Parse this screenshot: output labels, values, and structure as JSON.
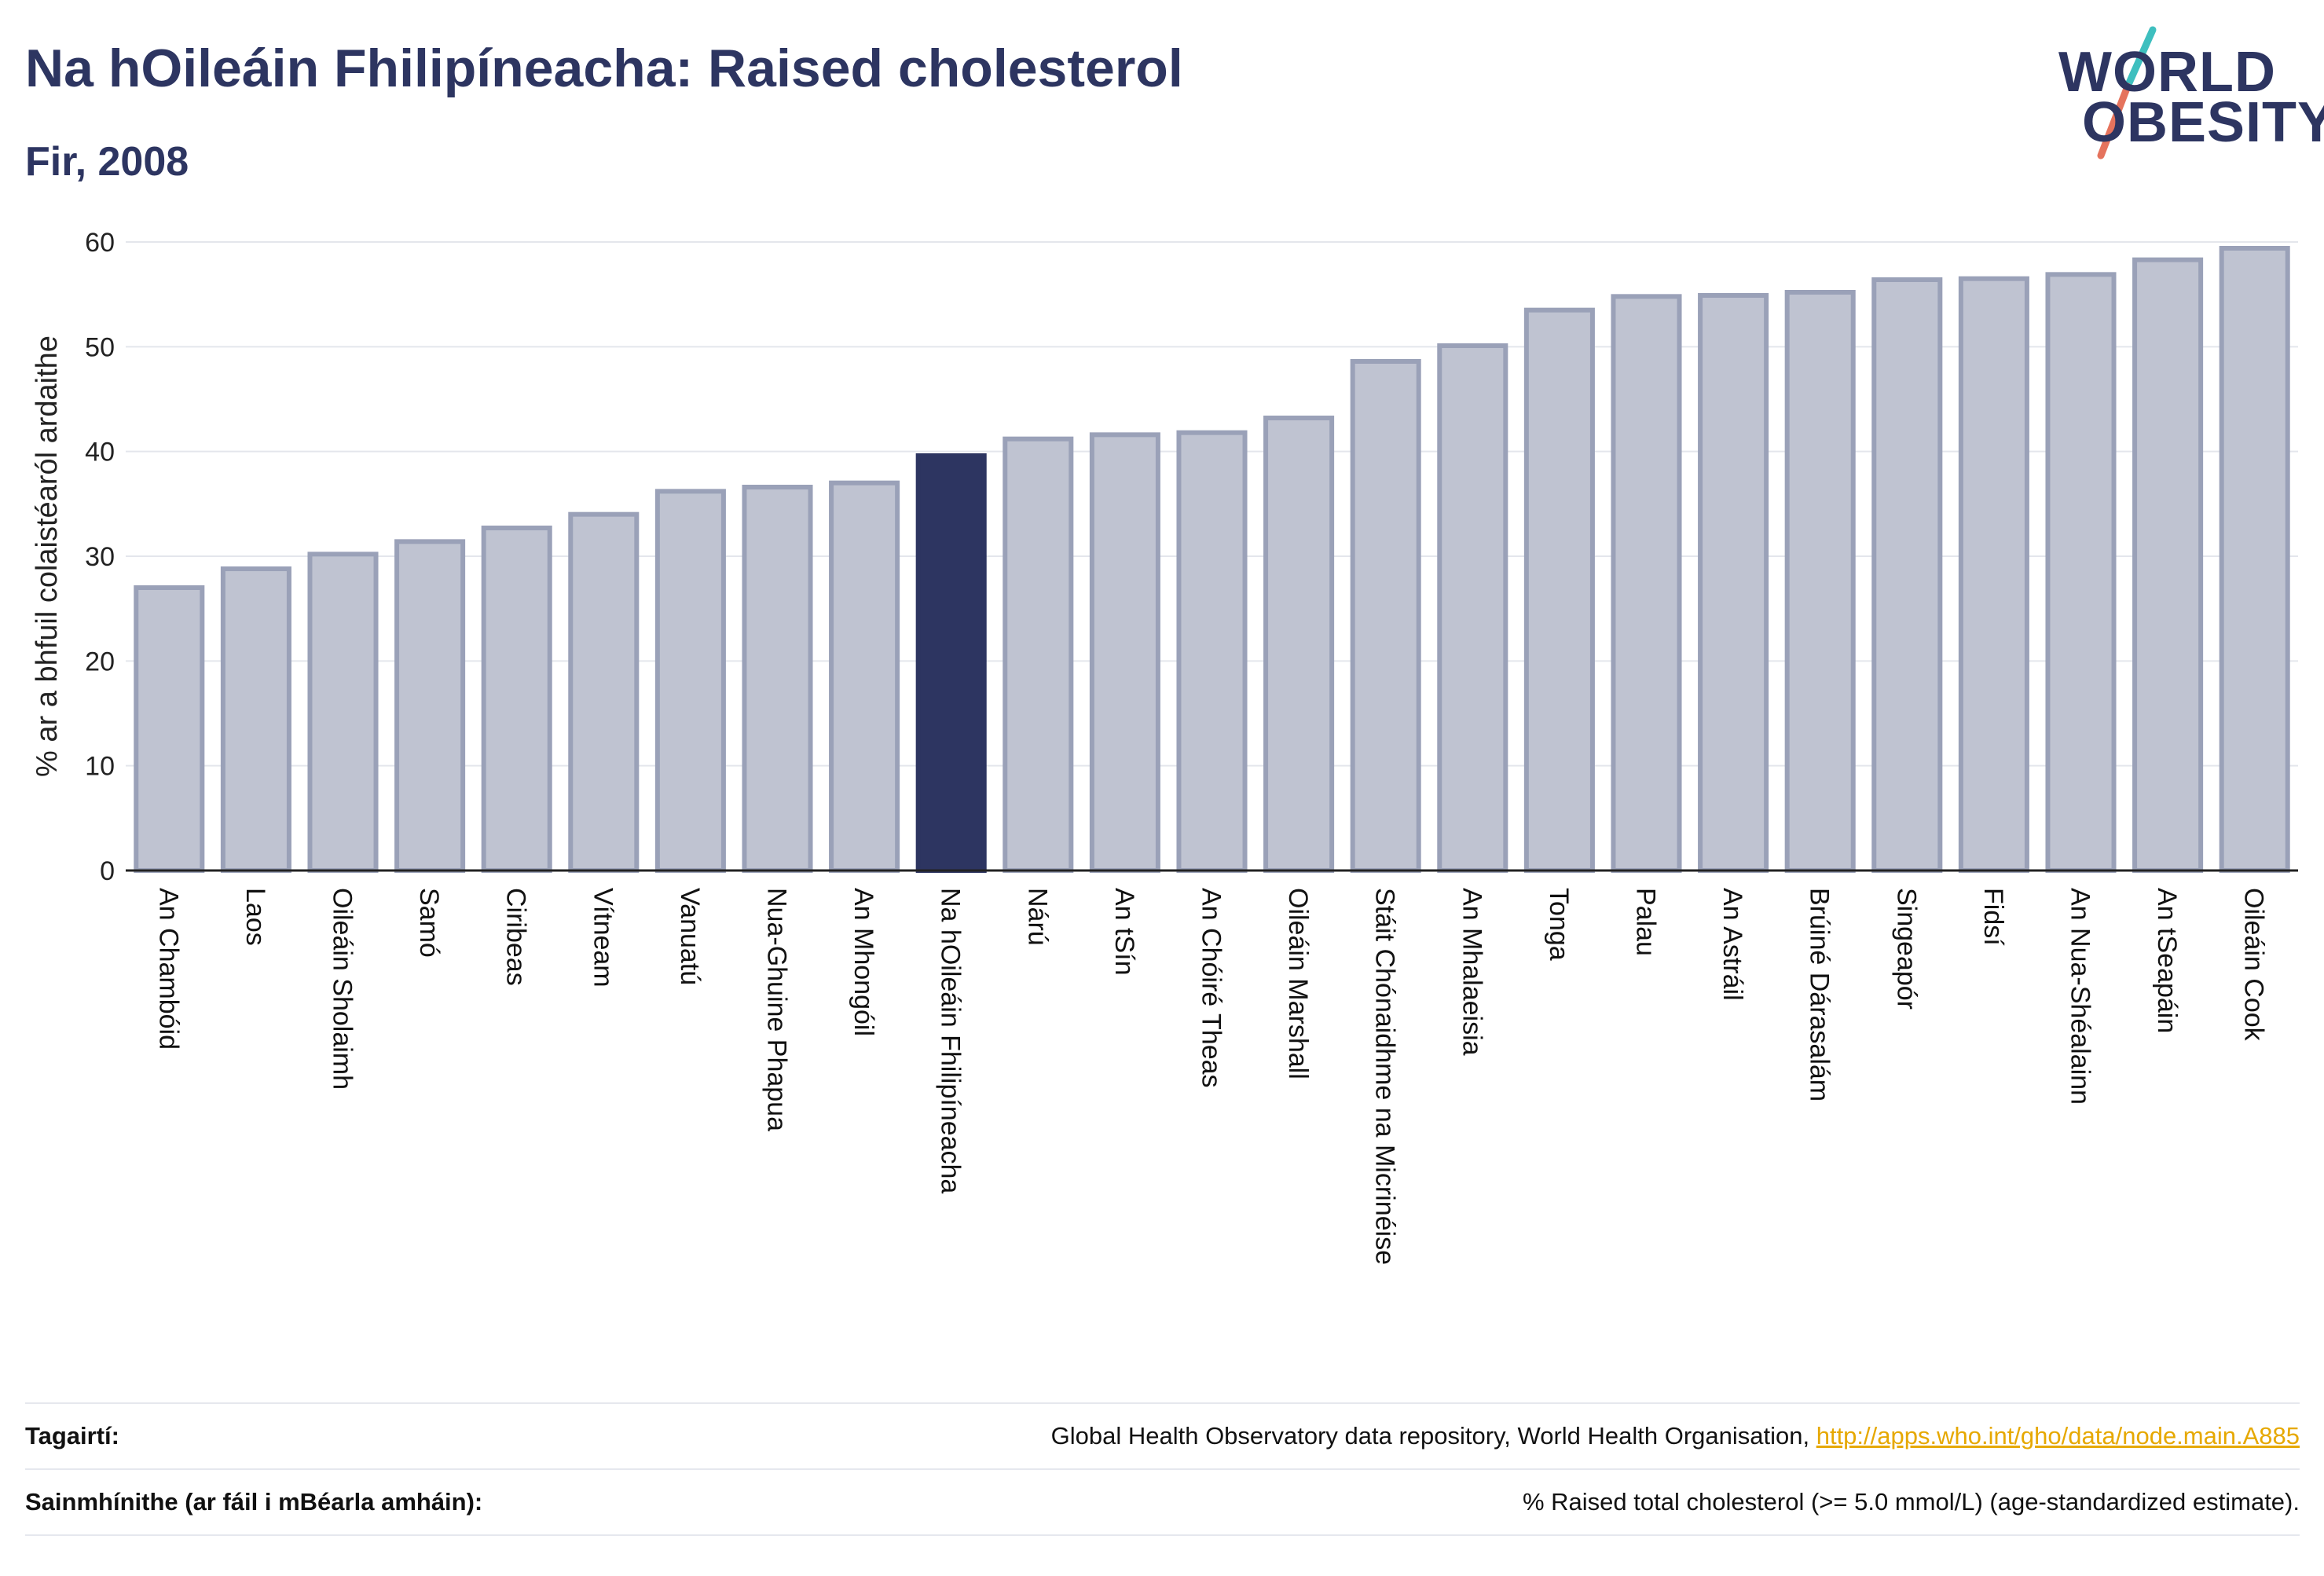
{
  "title": "Na hOileáin Fhilipíneacha: Raised cholesterol",
  "subtitle": "Fir, 2008",
  "logo": {
    "line1": "WORLD",
    "line2": "OBESITY"
  },
  "colors": {
    "bar": "#bfc3d1",
    "bar_edge": "#9aa1b8",
    "highlight": "#2d3561",
    "text": "#2d3561",
    "logo_teal": "#3ebfbf",
    "logo_red": "#e5735d"
  },
  "chart_data": {
    "type": "bar",
    "ylabel": "% ar a bhfuil colaistéaról ardaithe",
    "xlabel": "",
    "ylim": [
      0,
      60
    ],
    "yticks": [
      0,
      10,
      20,
      30,
      40,
      50,
      60
    ],
    "grid": true,
    "highlight": "Na hOileáin Fhilipíneacha",
    "categories": [
      "An Chambóid",
      "Laos",
      "Oileáin Sholaimh",
      "Samó",
      "Ciribeas",
      "Vítneam",
      "Vanuatú",
      "Nua-Ghuine Phapua",
      "An Mhongóil",
      "Na hOileáin Fhilipíneacha",
      "Nárú",
      "An tSín",
      "An Chóiré Theas",
      "Oileáin Marshall",
      "Stáit Chónaidhme na Micrinéise",
      "An Mhalaeisia",
      "Tonga",
      "Palau",
      "An Astráil",
      "Brúiné Dárasalám",
      "Singeapór",
      "Fidsí",
      "An Nua-Shéalainn",
      "An tSeapáin",
      "Oileáin Cook"
    ],
    "values": [
      27.0,
      28.8,
      30.2,
      31.4,
      32.7,
      34.0,
      36.2,
      36.6,
      37.0,
      39.6,
      41.2,
      41.6,
      41.8,
      43.2,
      48.6,
      50.1,
      53.5,
      54.8,
      54.9,
      55.2,
      56.4,
      56.5,
      56.9,
      58.3,
      59.4
    ]
  },
  "footer": {
    "references_label": "Tagairtí:",
    "references_text": "Global Health Observatory data repository, World Health Organisation, ",
    "references_link": "http://apps.who.int/gho/data/node.main.A885",
    "definitions_label": "Sainmhínithe (ar fáil i mBéarla amháin):",
    "definitions_text": "% Raised total cholesterol (>= 5.0 mmol/L) (age-standardized estimate)."
  }
}
